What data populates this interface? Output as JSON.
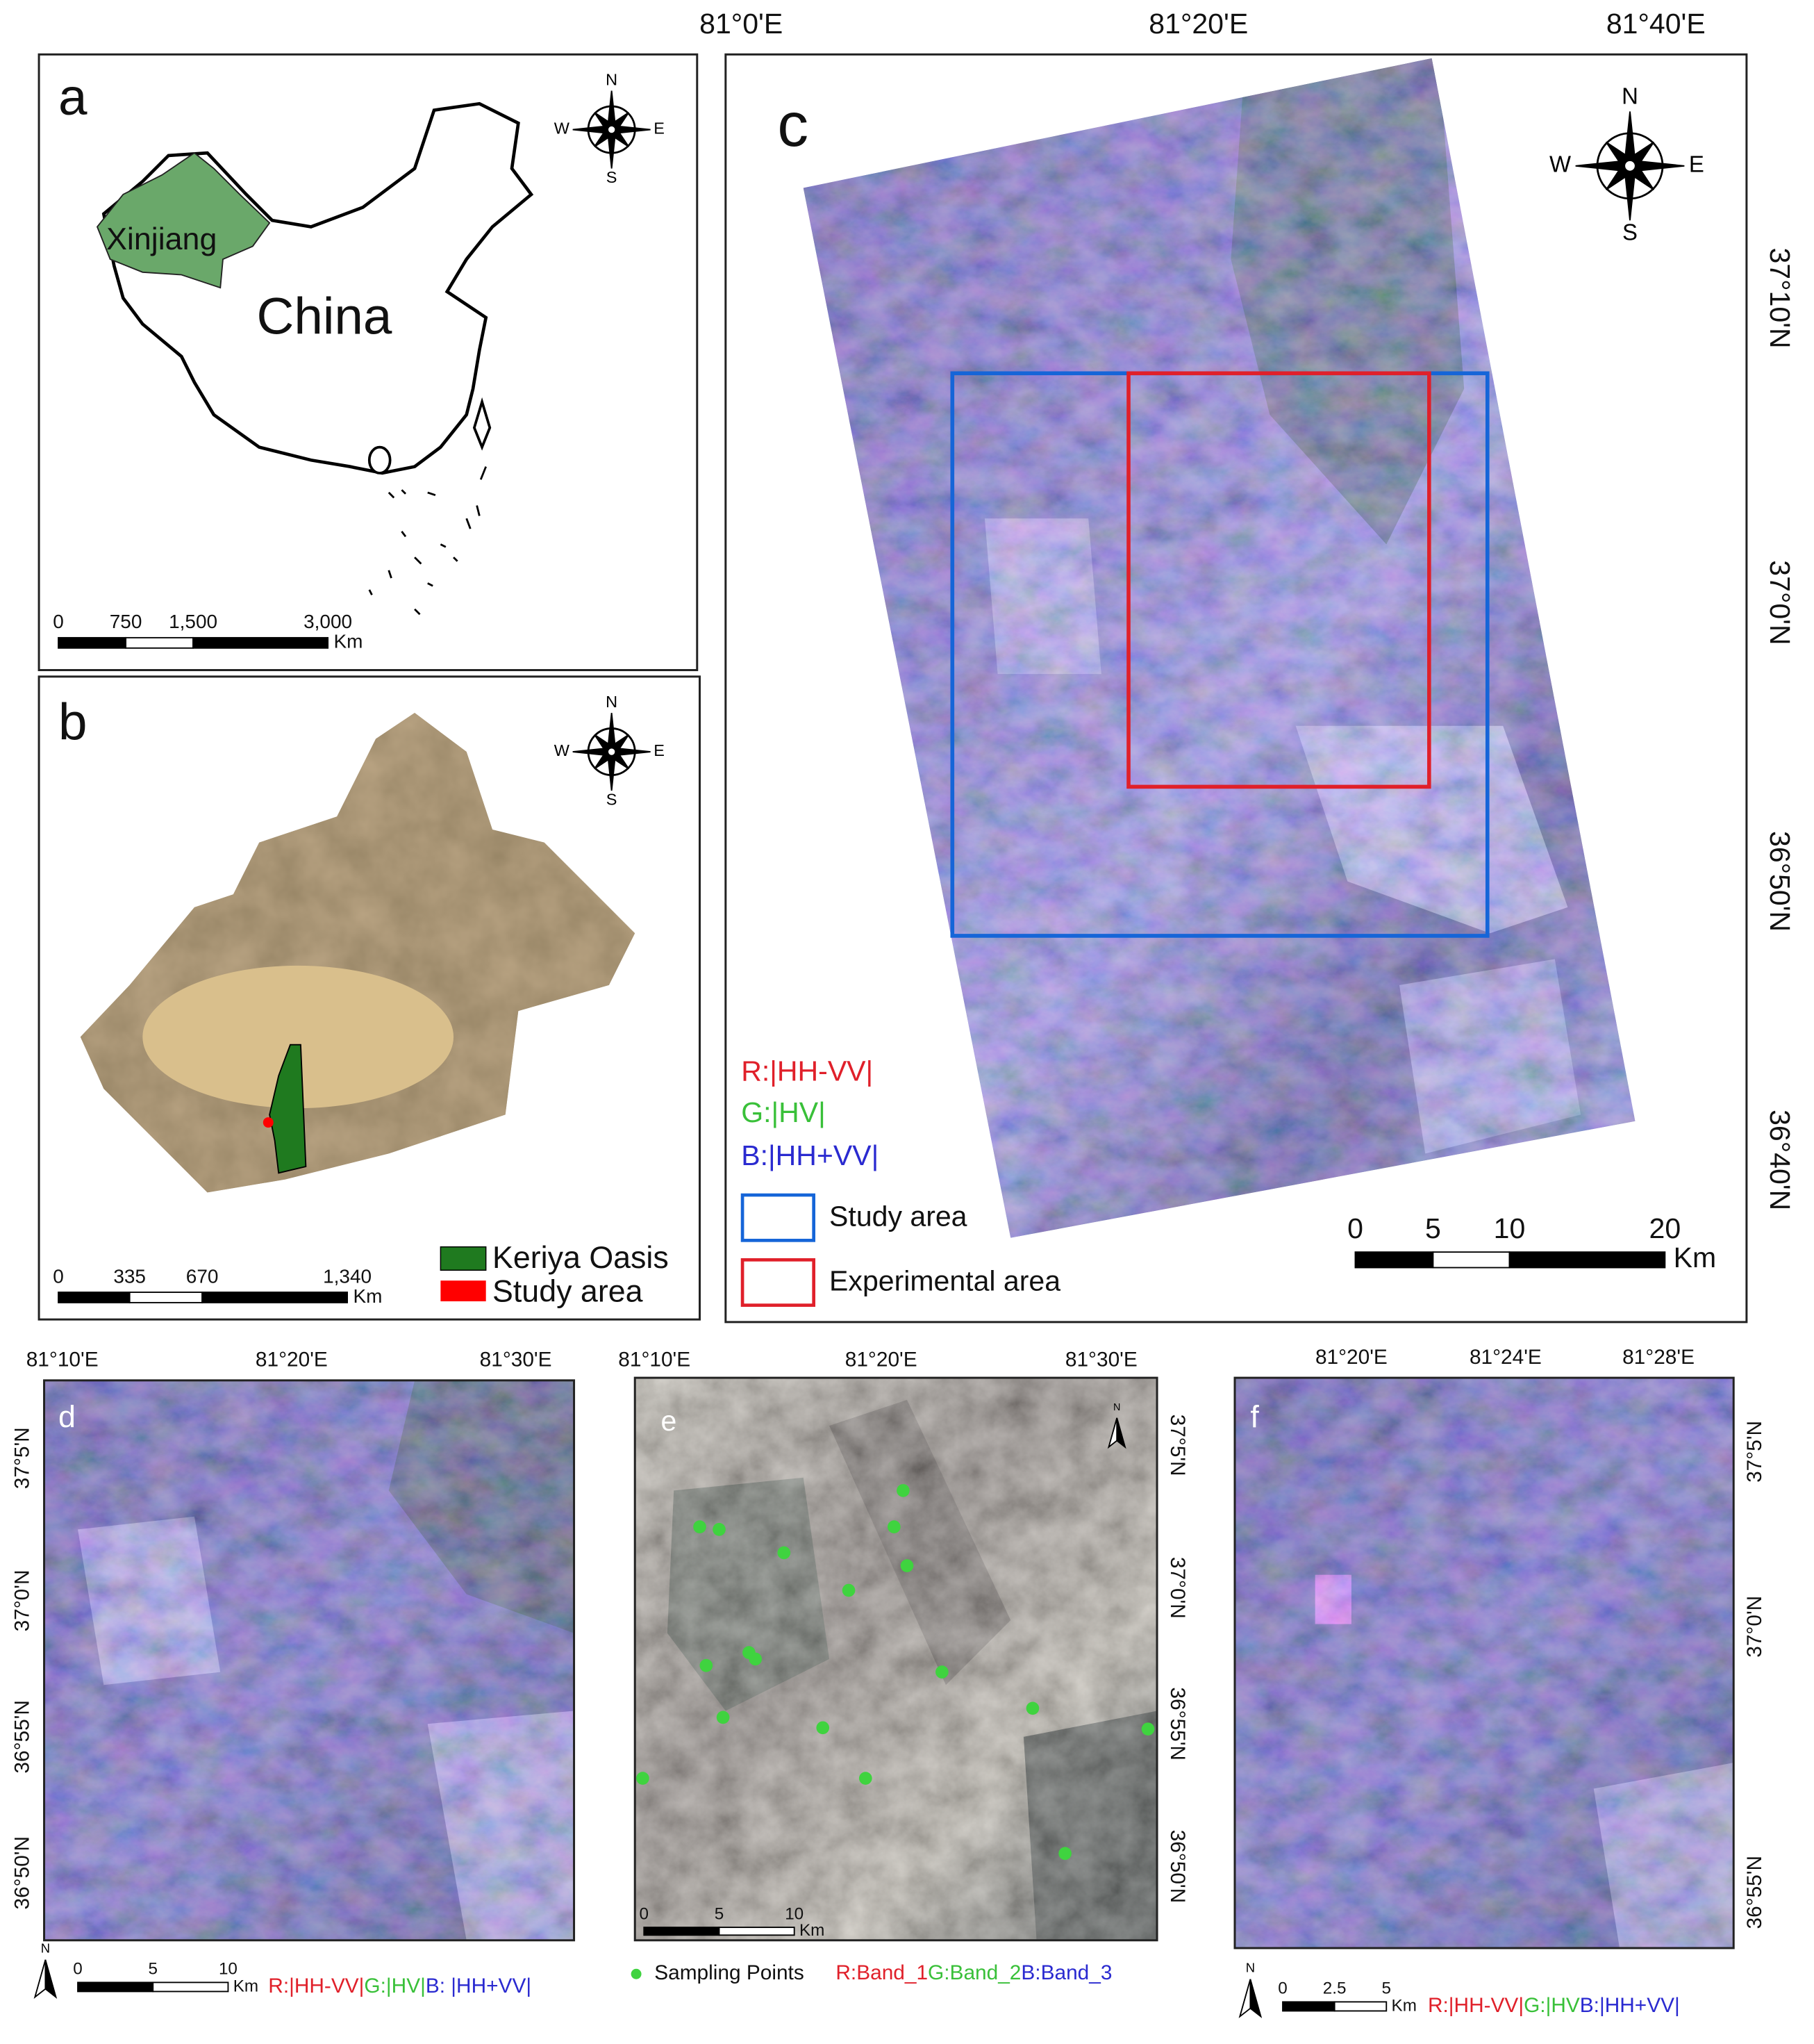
{
  "panel_a": {
    "label": "a",
    "region": "Xinjiang",
    "country": "China",
    "compass": {
      "n": "N",
      "w": "W",
      "e": "E",
      "s": "S"
    },
    "scale_bar": {
      "ticks": [
        "0",
        "750",
        "1,500",
        "3,000"
      ],
      "unit": "Km"
    }
  },
  "panel_b": {
    "label": "b",
    "compass": {
      "n": "N",
      "w": "W",
      "e": "E",
      "s": "S"
    },
    "scale_bar": {
      "ticks": [
        "0",
        "335",
        "670",
        "1,340"
      ],
      "unit": "Km"
    },
    "legend": [
      "Keriya Oasis",
      "Study area"
    ]
  },
  "panel_c": {
    "label": "c",
    "lon_labels": [
      "81°0'E",
      "81°20'E",
      "81°40'E"
    ],
    "lat_labels": [
      "37°10'N",
      "37°0'N",
      "36°50'N",
      "36°40'N"
    ],
    "compass": {
      "n": "N",
      "w": "W",
      "e": "E",
      "s": "S"
    },
    "band_legend": [
      "R:|HH-VV|",
      "G:|HV|",
      "B:|HH+VV|"
    ],
    "area_legend": [
      "Study area",
      "Experimental area"
    ],
    "scale_bar": {
      "ticks": [
        "0",
        "5",
        "10",
        "20"
      ],
      "unit": "Km"
    }
  },
  "panel_d": {
    "label": "d",
    "lon_labels": [
      "81°10'E",
      "81°20'E",
      "81°30'E"
    ],
    "lat_labels": [
      "37°5'N",
      "37°0'N",
      "36°55'N",
      "36°50'N"
    ],
    "north": "N",
    "scale_bar": {
      "ticks": [
        "0",
        "5",
        "10"
      ],
      "unit": "Km"
    },
    "bands": [
      "R:|HH-VV|",
      "G:|HV|",
      "B: |HH+VV|"
    ]
  },
  "panel_e": {
    "label": "e",
    "lon_labels": [
      "81°10'E",
      "81°20'E",
      "81°30'E"
    ],
    "lat_labels": [
      "37°5'N",
      "37°0'N",
      "36°55'N",
      "36°50'N"
    ],
    "north": "N",
    "scale_bar": {
      "ticks": [
        "0",
        "5",
        "10"
      ],
      "unit": "Km"
    },
    "points_legend": "Sampling Points",
    "bands": [
      "R:Band_1",
      "G:Band_2",
      "B:Band_3"
    ]
  },
  "panel_f": {
    "label": "f",
    "lon_labels": [
      "81°20'E",
      "81°24'E",
      "81°28'E"
    ],
    "lat_labels": [
      "37°5'N",
      "37°0'N",
      "36°55'N"
    ],
    "north": "N",
    "scale_bar": {
      "ticks": [
        "0",
        "2.5",
        "5"
      ],
      "unit": "Km"
    },
    "bands": [
      "R:|HH-VV|",
      "G:|HV",
      "B:|HH+VV|"
    ]
  }
}
